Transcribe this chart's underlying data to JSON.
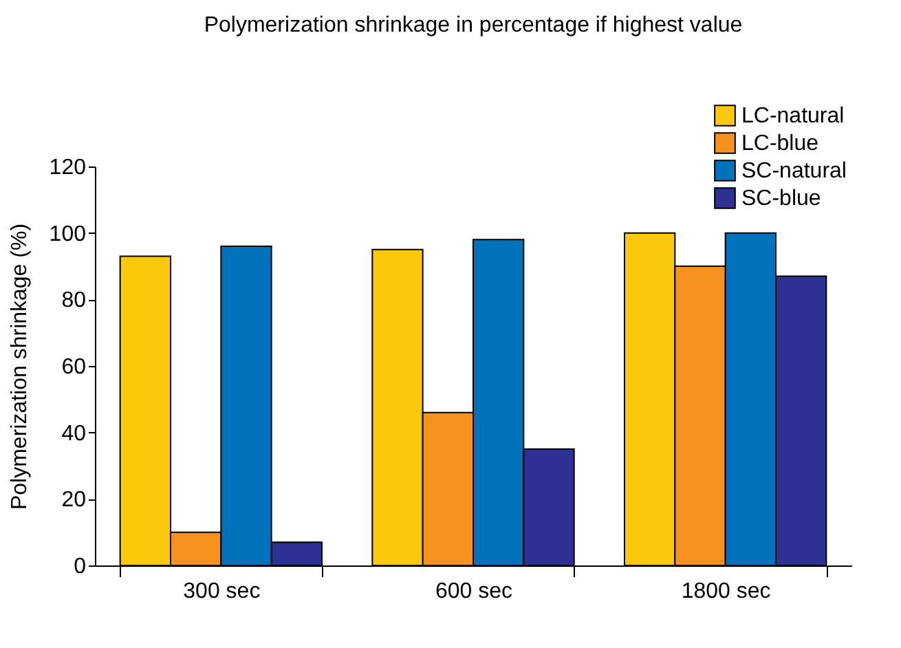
{
  "chart_data": {
    "type": "bar",
    "title": "Polymerization shrinkage in percentage if highest value",
    "ylabel": "Polymerization shrinkage (%)",
    "categories": [
      "300 sec",
      "600 sec",
      "1800 sec"
    ],
    "series": [
      {
        "name": "LC-natural",
        "color": "#fcc80c",
        "values": [
          93,
          95,
          100
        ]
      },
      {
        "name": "LC-blue",
        "color": "#f6921e",
        "values": [
          10,
          46,
          90
        ]
      },
      {
        "name": "SC-natural",
        "color": "#0071bb",
        "values": [
          96,
          98,
          100
        ]
      },
      {
        "name": "SC-blue",
        "color": "#2e3192",
        "values": [
          7,
          35,
          87
        ]
      }
    ],
    "ylim": [
      0,
      120
    ],
    "yticks": [
      0,
      20,
      40,
      60,
      80,
      100,
      120
    ],
    "grid": false,
    "legend": "top right"
  }
}
